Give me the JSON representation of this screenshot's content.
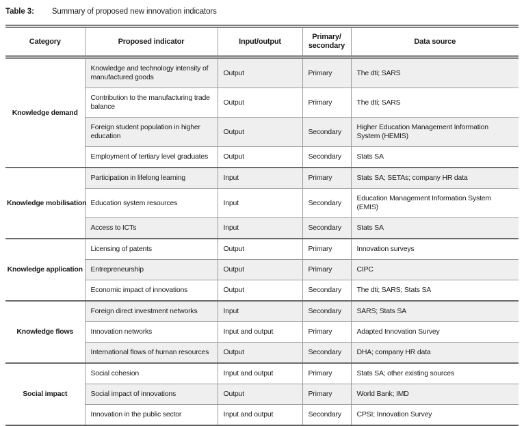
{
  "title": {
    "label": "Table 3:",
    "text": "Summary of proposed new innovation indicators"
  },
  "table": {
    "headers": [
      "Category",
      "Proposed indicator",
      "Input/output",
      "Primary/\nsecondary",
      "Data source"
    ],
    "groups": [
      {
        "category": "Knowledge demand",
        "rows": [
          {
            "indicator": "Knowledge and technology intensity of manufactured goods",
            "io": "Output",
            "ps": "Primary",
            "source": "The dti; SARS"
          },
          {
            "indicator": "Contribution to the manufacturing trade balance",
            "io": "Output",
            "ps": "Primary",
            "source": "The dti; SARS"
          },
          {
            "indicator": "Foreign student population in higher education",
            "io": "Output",
            "ps": "Secondary",
            "source": "Higher Education Management Information System (HEMIS)"
          },
          {
            "indicator": "Employment of tertiary level graduates",
            "io": "Output",
            "ps": "Secondary",
            "source": "Stats SA"
          }
        ]
      },
      {
        "category": "Knowledge mobilisation",
        "rows": [
          {
            "indicator": "Participation in lifelong learning",
            "io": "Input",
            "ps": "Primary",
            "source": "Stats SA; SETAs; company HR data"
          },
          {
            "indicator": "Education system resources",
            "io": "Input",
            "ps": "Secondary",
            "source": "Education Management Information System (EMIS)"
          },
          {
            "indicator": "Access to ICTs",
            "io": "Input",
            "ps": "Secondary",
            "source": "Stats SA"
          }
        ]
      },
      {
        "category": "Knowledge application",
        "rows": [
          {
            "indicator": "Licensing of patents",
            "io": "Output",
            "ps": "Primary",
            "source": "Innovation surveys"
          },
          {
            "indicator": "Entrepreneurship",
            "io": "Output",
            "ps": "Primary",
            "source": "CIPC"
          },
          {
            "indicator": "Economic impact of innovations",
            "io": "Output",
            "ps": "Secondary",
            "source": "The dti; SARS; Stats SA"
          }
        ]
      },
      {
        "category": "Knowledge flows",
        "rows": [
          {
            "indicator": "Foreign direct investment networks",
            "io": "Input",
            "ps": "Secondary",
            "source": "SARS; Stats SA"
          },
          {
            "indicator": "Innovation networks",
            "io": "Input and output",
            "ps": "Primary",
            "source": "Adapted Innovation Survey"
          },
          {
            "indicator": "International flows of human resources",
            "io": "Output",
            "ps": "Secondary",
            "source": "DHA; company HR data"
          }
        ]
      },
      {
        "category": "Social impact",
        "rows": [
          {
            "indicator": "Social cohesion",
            "io": "Input and output",
            "ps": "Primary",
            "source": "Stats SA; other existing sources"
          },
          {
            "indicator": "Social impact of innovations",
            "io": "Output",
            "ps": "Primary",
            "source": "World Bank; IMD"
          },
          {
            "indicator": "Innovation in the public sector",
            "io": "Input and output",
            "ps": "Secondary",
            "source": "CPSI; Innovation Survey"
          }
        ]
      }
    ]
  },
  "colors": {
    "row_shade": "#efefef",
    "border_light": "#9b9b9b",
    "border_dark": "#6a6a6a",
    "rule_double": "#7f7f7f",
    "text": "#1a1a1a"
  }
}
